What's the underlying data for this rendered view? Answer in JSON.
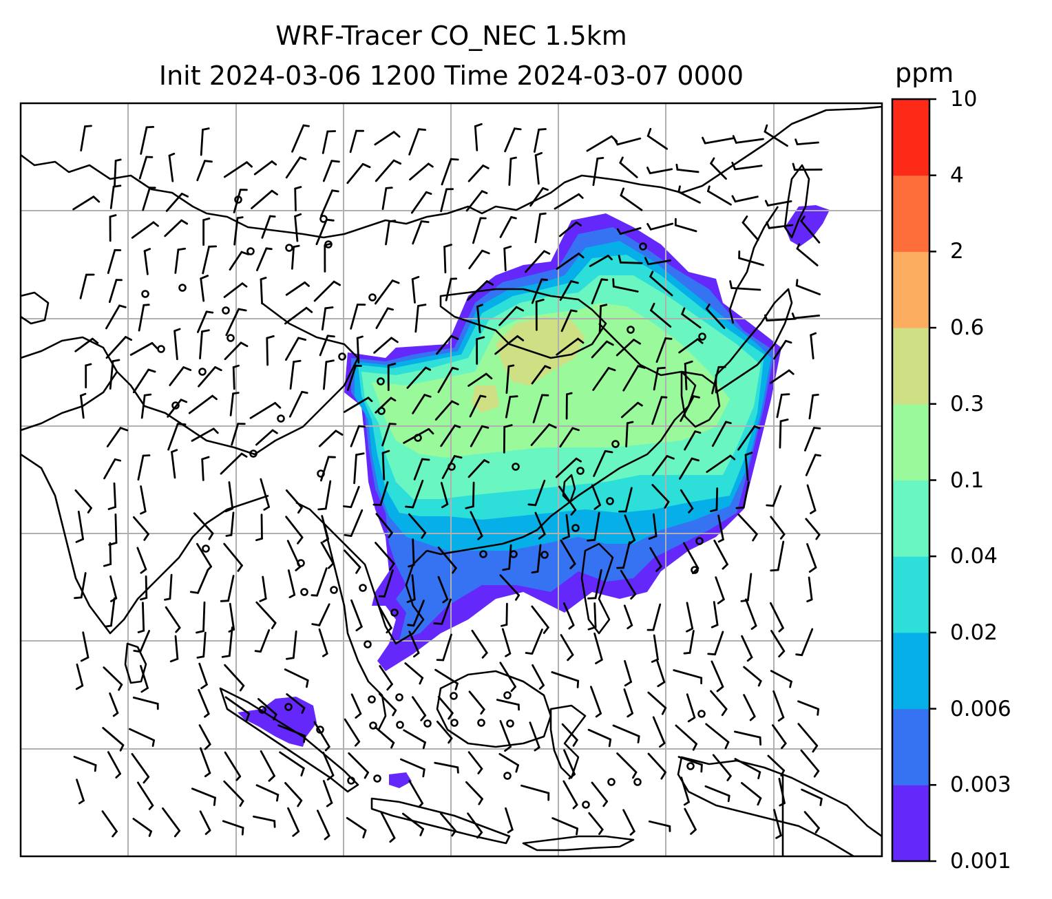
{
  "title": {
    "line1": "WRF-Tracer CO_NEC 1.5km",
    "line2": "Init 2024-03-06 1200 Time 2024-03-07 0000"
  },
  "colorbar": {
    "unit": "ppm",
    "levels": [
      "0.001",
      "0.003",
      "0.006",
      "0.02",
      "0.04",
      "0.1",
      "0.3",
      "0.6",
      "2",
      "4",
      "10"
    ],
    "colors": [
      "#6528fa",
      "#3573f2",
      "#06afe8",
      "#2ddfd8",
      "#6af6c0",
      "#99f99b",
      "#cfe084",
      "#fdad60",
      "#fe6e3b",
      "#fc2a16"
    ]
  },
  "map_style": {
    "background": "#ffffff",
    "coastline_color": "#000000",
    "grid_color": "#b0b0b0",
    "wind_barb_color": "#000000"
  }
}
